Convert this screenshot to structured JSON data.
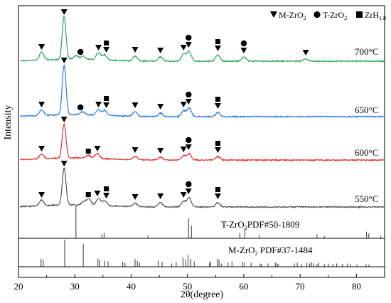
{
  "chart_data": {
    "type": "line",
    "xlabel": "2θ(degree)",
    "ylabel": "Intensity",
    "xlim": [
      20,
      85
    ],
    "xticks": [
      20,
      30,
      40,
      50,
      60,
      70,
      80
    ],
    "grid": false,
    "legend_position": "top-right",
    "legend": [
      {
        "symbol": "triangle-down",
        "text": "M-ZrO",
        "sub": "2"
      },
      {
        "symbol": "circle",
        "text": "T-ZrO",
        "sub": "2"
      },
      {
        "symbol": "square",
        "text": "ZrH",
        "sub": "1.8"
      }
    ],
    "series": [
      {
        "name": "700°C",
        "color": "#2ca65a",
        "peaks": [
          {
            "x": 24.1,
            "h": 11
          },
          {
            "x": 28.1,
            "h": 60
          },
          {
            "x": 30.2,
            "h": 5
          },
          {
            "x": 31.4,
            "h": 4
          },
          {
            "x": 34.2,
            "h": 10
          },
          {
            "x": 35.3,
            "h": 7
          },
          {
            "x": 40.7,
            "h": 7
          },
          {
            "x": 45.2,
            "h": 6
          },
          {
            "x": 49.3,
            "h": 10
          },
          {
            "x": 50.3,
            "h": 14
          },
          {
            "x": 55.4,
            "h": 9
          },
          {
            "x": 60.0,
            "h": 6
          },
          {
            "x": 71.0,
            "h": 3
          }
        ],
        "markers": [
          {
            "x": 24.1,
            "type": "triangle"
          },
          {
            "x": 28.1,
            "type": "triangle"
          },
          {
            "x": 31.0,
            "type": "circle"
          },
          {
            "x": 34.2,
            "type": "triangle"
          },
          {
            "x": 35.6,
            "type": "square+triangle"
          },
          {
            "x": 40.7,
            "type": "triangle"
          },
          {
            "x": 45.2,
            "type": "triangle"
          },
          {
            "x": 49.3,
            "type": "triangle"
          },
          {
            "x": 50.2,
            "type": "circle+triangle"
          },
          {
            "x": 55.4,
            "type": "square+triangle"
          },
          {
            "x": 60.0,
            "type": "circle+triangle"
          },
          {
            "x": 71.0,
            "type": "triangle"
          }
        ]
      },
      {
        "name": "650°C",
        "color": "#2a7be0",
        "peaks": [
          {
            "x": 24.1,
            "h": 8
          },
          {
            "x": 28.1,
            "h": 70
          },
          {
            "x": 31.4,
            "h": 4
          },
          {
            "x": 34.2,
            "h": 8
          },
          {
            "x": 35.3,
            "h": 7
          },
          {
            "x": 40.7,
            "h": 7
          },
          {
            "x": 45.2,
            "h": 5
          },
          {
            "x": 49.3,
            "h": 8
          },
          {
            "x": 50.3,
            "h": 12
          },
          {
            "x": 55.4,
            "h": 6
          }
        ],
        "markers": [
          {
            "x": 24.1,
            "type": "triangle"
          },
          {
            "x": 28.1,
            "type": "triangle"
          },
          {
            "x": 31.0,
            "type": "circle"
          },
          {
            "x": 34.2,
            "type": "triangle"
          },
          {
            "x": 35.6,
            "type": "square+triangle"
          },
          {
            "x": 40.7,
            "type": "triangle"
          },
          {
            "x": 45.2,
            "type": "triangle"
          },
          {
            "x": 49.3,
            "type": "triangle"
          },
          {
            "x": 50.2,
            "type": "circle+triangle"
          },
          {
            "x": 55.4,
            "type": "square+triangle"
          }
        ]
      },
      {
        "name": "600°C",
        "color": "#e03030",
        "peaks": [
          {
            "x": 24.1,
            "h": 7
          },
          {
            "x": 28.1,
            "h": 48
          },
          {
            "x": 32.4,
            "h": 4
          },
          {
            "x": 34.0,
            "h": 7
          },
          {
            "x": 40.7,
            "h": 5
          },
          {
            "x": 45.2,
            "h": 4
          },
          {
            "x": 49.3,
            "h": 6
          },
          {
            "x": 50.3,
            "h": 9
          },
          {
            "x": 55.4,
            "h": 5
          }
        ],
        "markers": [
          {
            "x": 24.1,
            "type": "triangle"
          },
          {
            "x": 28.1,
            "type": "triangle"
          },
          {
            "x": 32.4,
            "type": "square"
          },
          {
            "x": 34.0,
            "type": "triangle"
          },
          {
            "x": 40.7,
            "type": "triangle"
          },
          {
            "x": 45.2,
            "type": "triangle"
          },
          {
            "x": 49.3,
            "type": "triangle"
          },
          {
            "x": 50.2,
            "type": "circle+triangle"
          },
          {
            "x": 55.4,
            "type": "square+triangle"
          }
        ]
      },
      {
        "name": "550°C",
        "color": "#555555",
        "peaks": [
          {
            "x": 24.1,
            "h": 8
          },
          {
            "x": 28.1,
            "h": 52
          },
          {
            "x": 31.6,
            "h": 5
          },
          {
            "x": 32.5,
            "h": 9
          },
          {
            "x": 34.2,
            "h": 10
          },
          {
            "x": 35.3,
            "h": 7
          },
          {
            "x": 40.7,
            "h": 5
          },
          {
            "x": 45.2,
            "h": 6
          },
          {
            "x": 49.3,
            "h": 8
          },
          {
            "x": 50.3,
            "h": 13
          },
          {
            "x": 55.4,
            "h": 6
          }
        ],
        "markers": [
          {
            "x": 24.1,
            "type": "triangle"
          },
          {
            "x": 28.1,
            "type": "triangle"
          },
          {
            "x": 32.4,
            "type": "square"
          },
          {
            "x": 34.0,
            "type": "triangle"
          },
          {
            "x": 35.6,
            "type": "square+triangle"
          },
          {
            "x": 40.7,
            "type": "triangle"
          },
          {
            "x": 45.2,
            "type": "triangle"
          },
          {
            "x": 49.3,
            "type": "triangle"
          },
          {
            "x": 50.2,
            "type": "circle+triangle"
          },
          {
            "x": 55.4,
            "type": "square+triangle"
          }
        ]
      }
    ],
    "references": [
      {
        "name": "T-ZrO2 PDF#50-1809",
        "label_main": "T-ZrO",
        "label_sub": "2",
        "label_rest": "PDF#50-1809",
        "lines": [
          {
            "x": 30.2,
            "h": 1.0
          },
          {
            "x": 34.8,
            "h": 0.12
          },
          {
            "x": 35.2,
            "h": 0.17
          },
          {
            "x": 43.0,
            "h": 0.09
          },
          {
            "x": 50.2,
            "h": 0.6
          },
          {
            "x": 50.7,
            "h": 0.38
          },
          {
            "x": 59.3,
            "h": 0.17
          },
          {
            "x": 60.2,
            "h": 0.3
          },
          {
            "x": 62.8,
            "h": 0.1
          },
          {
            "x": 73.0,
            "h": 0.12
          },
          {
            "x": 74.3,
            "h": 0.07
          },
          {
            "x": 81.8,
            "h": 0.2
          },
          {
            "x": 82.2,
            "h": 0.15
          },
          {
            "x": 84.3,
            "h": 0.08
          }
        ]
      },
      {
        "name": "M-ZrO2 PDF#37-1484",
        "label_main": "M-ZrO",
        "label_sub": "2",
        "label_rest": " PDF#37-1484",
        "lines": [
          {
            "x": 24.0,
            "h": 0.3
          },
          {
            "x": 24.4,
            "h": 0.25
          },
          {
            "x": 28.2,
            "h": 1.0
          },
          {
            "x": 31.5,
            "h": 0.85
          },
          {
            "x": 34.1,
            "h": 0.3
          },
          {
            "x": 34.4,
            "h": 0.25
          },
          {
            "x": 35.3,
            "h": 0.22
          },
          {
            "x": 35.9,
            "h": 0.2
          },
          {
            "x": 38.5,
            "h": 0.18
          },
          {
            "x": 38.9,
            "h": 0.15
          },
          {
            "x": 40.7,
            "h": 0.28
          },
          {
            "x": 41.1,
            "h": 0.22
          },
          {
            "x": 41.5,
            "h": 0.15
          },
          {
            "x": 44.8,
            "h": 0.22
          },
          {
            "x": 45.5,
            "h": 0.18
          },
          {
            "x": 47.2,
            "h": 0.12
          },
          {
            "x": 48.0,
            "h": 0.18
          },
          {
            "x": 49.2,
            "h": 0.35
          },
          {
            "x": 49.7,
            "h": 0.25
          },
          {
            "x": 50.1,
            "h": 0.45
          },
          {
            "x": 50.6,
            "h": 0.3
          },
          {
            "x": 51.2,
            "h": 0.2
          },
          {
            "x": 53.9,
            "h": 0.15
          },
          {
            "x": 54.1,
            "h": 0.2
          },
          {
            "x": 55.3,
            "h": 0.3
          },
          {
            "x": 55.6,
            "h": 0.25
          },
          {
            "x": 56.0,
            "h": 0.12
          },
          {
            "x": 57.2,
            "h": 0.15
          },
          {
            "x": 57.9,
            "h": 0.2
          },
          {
            "x": 59.8,
            "h": 0.18
          },
          {
            "x": 60.1,
            "h": 0.15
          },
          {
            "x": 61.3,
            "h": 0.15
          },
          {
            "x": 62.9,
            "h": 0.12
          },
          {
            "x": 63.1,
            "h": 0.1
          },
          {
            "x": 64.3,
            "h": 0.12
          },
          {
            "x": 65.6,
            "h": 0.15
          },
          {
            "x": 65.9,
            "h": 0.12
          },
          {
            "x": 66.1,
            "h": 0.1
          },
          {
            "x": 69.0,
            "h": 0.12
          },
          {
            "x": 69.5,
            "h": 0.15
          },
          {
            "x": 70.2,
            "h": 0.1
          },
          {
            "x": 71.2,
            "h": 0.15
          },
          {
            "x": 71.7,
            "h": 0.12
          },
          {
            "x": 72.0,
            "h": 0.18
          },
          {
            "x": 72.4,
            "h": 0.12
          },
          {
            "x": 73.0,
            "h": 0.1
          },
          {
            "x": 73.3,
            "h": 0.15
          },
          {
            "x": 74.3,
            "h": 0.1
          },
          {
            "x": 75.0,
            "h": 0.12
          },
          {
            "x": 75.8,
            "h": 0.1
          },
          {
            "x": 76.5,
            "h": 0.12
          },
          {
            "x": 77.5,
            "h": 0.1
          },
          {
            "x": 78.4,
            "h": 0.12
          },
          {
            "x": 79.0,
            "h": 0.1
          },
          {
            "x": 80.1,
            "h": 0.08
          },
          {
            "x": 81.7,
            "h": 0.1
          },
          {
            "x": 82.2,
            "h": 0.08
          }
        ]
      }
    ]
  }
}
